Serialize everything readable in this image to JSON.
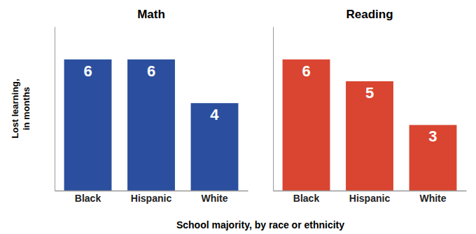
{
  "chart_data": [
    {
      "type": "bar",
      "title": "Math",
      "categories": [
        "Black",
        "Hispanic",
        "White"
      ],
      "values": [
        6,
        6,
        4
      ],
      "color": "#2B4F9E",
      "ylim": [
        0,
        7.5
      ],
      "ylabel": "Lost learning,\nin months",
      "xlabel": "School majority, by race or ethnicity",
      "data_labels": true,
      "tick_labels": "x",
      "grid": false
    },
    {
      "type": "bar",
      "title": "Reading",
      "categories": [
        "Black",
        "Hispanic",
        "White"
      ],
      "values": [
        6,
        5,
        3
      ],
      "color": "#D94530",
      "ylim": [
        0,
        7.5
      ],
      "data_labels": true,
      "tick_labels": "x",
      "grid": false
    }
  ]
}
